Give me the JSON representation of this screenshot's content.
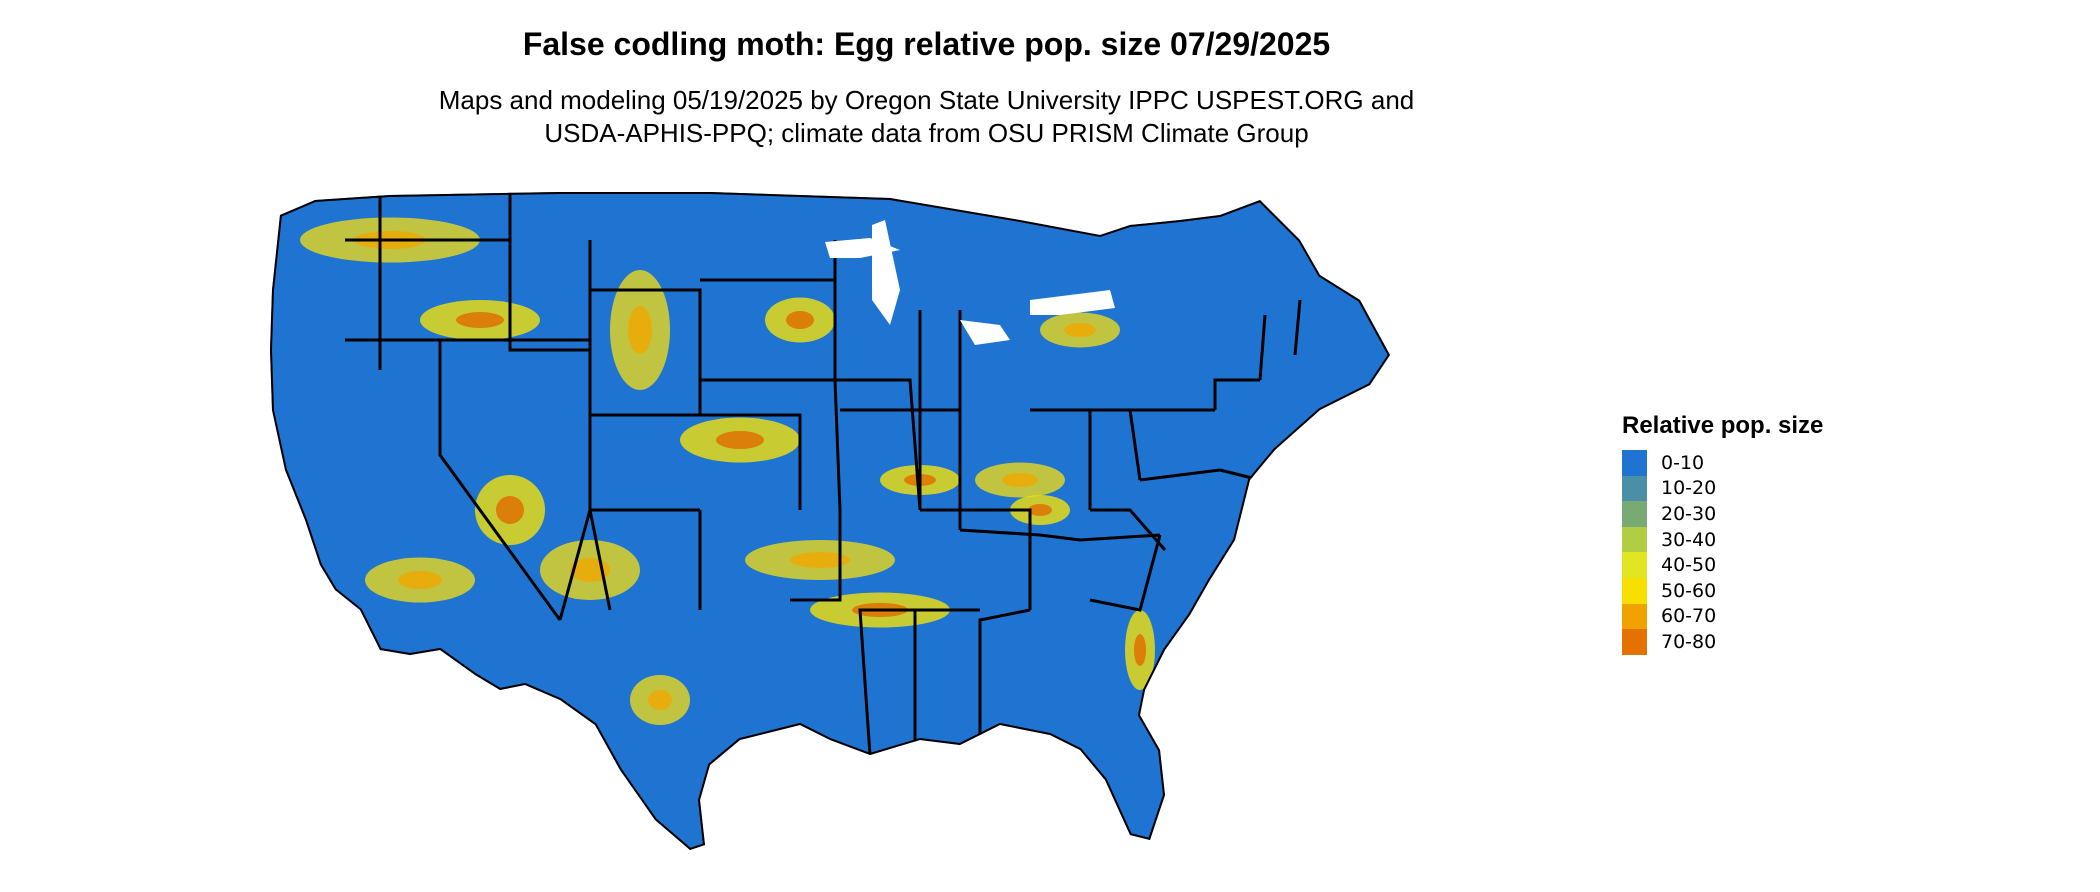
{
  "title": "False codling moth: Egg relative pop. size 07/29/2025",
  "subtitle_lines": [
    "Maps and modeling 05/19/2025 by Oregon State University IPPC USPEST.ORG and",
    "USDA-APHIS-PPQ; climate data from OSU PRISM Climate Group"
  ],
  "map": {
    "base_color": "#1f74d1",
    "border_color": "#000000",
    "hotspot_colors": [
      "#e8d81c",
      "#f2e20a",
      "#f0a800",
      "#e06a00"
    ]
  },
  "legend": {
    "title": "Relative pop. size",
    "items": [
      {
        "label": "0-10",
        "color": "#1f74d1"
      },
      {
        "label": "10-20",
        "color": "#4b8fa6"
      },
      {
        "label": "20-30",
        "color": "#7aaa74"
      },
      {
        "label": "30-40",
        "color": "#b1cd44"
      },
      {
        "label": "40-50",
        "color": "#e2e521"
      },
      {
        "label": "50-60",
        "color": "#f7df00"
      },
      {
        "label": "60-70",
        "color": "#f0a300"
      },
      {
        "label": "70-80",
        "color": "#e57200"
      }
    ]
  }
}
